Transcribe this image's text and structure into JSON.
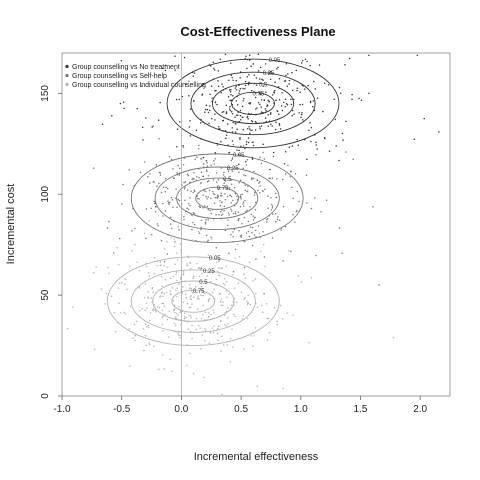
{
  "chart_data": {
    "type": "scatter",
    "title": "Cost-Effectiveness Plane",
    "xlabel": "Incremental effectiveness",
    "ylabel": "Incremental cost",
    "xlim": [
      -1.0,
      2.25
    ],
    "ylim": [
      0,
      170
    ],
    "x_ticks": [
      "-1.0",
      "-0.5",
      "0.0",
      "0.5",
      "1.0",
      "1.5",
      "2.0"
    ],
    "x_tick_values": [
      -1.0,
      -0.5,
      0.0,
      0.5,
      1.0,
      1.5,
      2.0
    ],
    "y_ticks": [
      "0",
      "50",
      "100",
      "150"
    ],
    "y_tick_values": [
      0,
      50,
      100,
      150
    ],
    "grid": false,
    "legend_position": "top-left",
    "reference_lines": {
      "x": 0
    },
    "series": [
      {
        "name": "Group counselling vs No treatment",
        "color": "#333333",
        "center": [
          0.6,
          145
        ],
        "spread": [
          0.35,
          13
        ],
        "contours": [
          {
            "level": "0.05",
            "rx": 0.72,
            "ry": 22
          },
          {
            "level": "0.25",
            "rx": 0.52,
            "ry": 15.5
          },
          {
            "level": "0.5",
            "rx": 0.34,
            "ry": 10
          },
          {
            "level": "0.75",
            "rx": 0.18,
            "ry": 5.5
          }
        ]
      },
      {
        "name": "Group counselling vs Self-help",
        "color": "#777777",
        "center": [
          0.3,
          98
        ],
        "spread": [
          0.33,
          13
        ],
        "contours": [
          {
            "level": "0.05",
            "rx": 0.72,
            "ry": 22
          },
          {
            "level": "0.25",
            "rx": 0.52,
            "ry": 15.5
          },
          {
            "level": "0.5",
            "rx": 0.34,
            "ry": 10
          },
          {
            "level": "0.75",
            "rx": 0.18,
            "ry": 5.5
          }
        ]
      },
      {
        "name": "Group counselling vs Individual counselling",
        "color": "#b3b3b3",
        "center": [
          0.1,
          47
        ],
        "spread": [
          0.33,
          13
        ],
        "contours": [
          {
            "level": "0.05",
            "rx": 0.72,
            "ry": 22
          },
          {
            "level": "0.25",
            "rx": 0.52,
            "ry": 15.5
          },
          {
            "level": "0.5",
            "rx": 0.34,
            "ry": 10
          },
          {
            "level": "0.75",
            "rx": 0.18,
            "ry": 5.5
          }
        ]
      }
    ]
  }
}
